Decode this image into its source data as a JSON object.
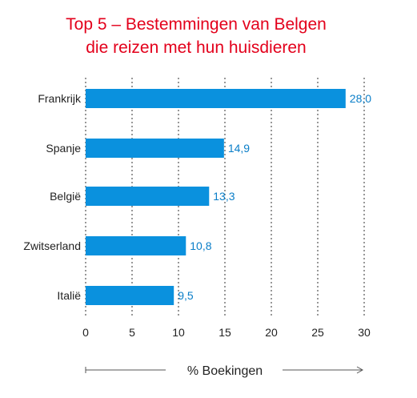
{
  "chart_data": {
    "type": "bar",
    "orientation": "horizontal",
    "title_lines": [
      "Top 5 – Bestemmingen van Belgen",
      "die reizen met hun huisdieren"
    ],
    "categories": [
      "Frankrijk",
      "Spanje",
      "België",
      "Zwitserland",
      "Italië"
    ],
    "values": [
      28.0,
      14.9,
      13.3,
      10.8,
      9.5
    ],
    "value_labels": [
      "28,0",
      "14,9",
      "13,3",
      "10,8",
      "9,5"
    ],
    "xticks": [
      "0",
      "5",
      "10",
      "15",
      "20",
      "25",
      "30"
    ],
    "xlim": [
      0,
      30
    ],
    "xlabel": "% Boekingen",
    "ylabel": "",
    "grid": "vertical dashed at x-ticks",
    "colors": {
      "bar": "#0a91de",
      "value_label": "#0a7ec8",
      "title": "#e3001b",
      "grid": "#555555"
    }
  }
}
